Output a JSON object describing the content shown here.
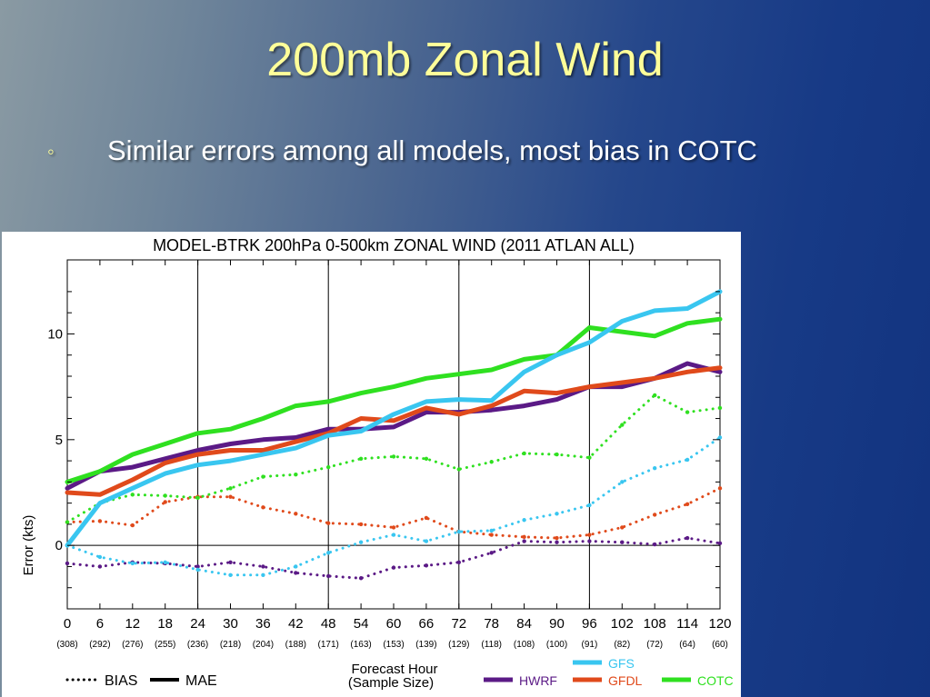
{
  "slide": {
    "title": "200mb Zonal Wind",
    "bullet_marker": "◦",
    "bullet": "Similar errors among all models, most bias in COTC"
  },
  "chart_data": {
    "type": "line",
    "title": "MODEL-BTRK 200hPa 0-500km ZONAL WIND (2011 ATLAN ALL)",
    "xlabel": "Forecast Hour",
    "xlabel2": "(Sample Size)",
    "ylabel": "Error (kts)",
    "x": [
      0,
      6,
      12,
      18,
      24,
      30,
      36,
      42,
      48,
      54,
      60,
      66,
      72,
      78,
      84,
      90,
      96,
      102,
      108,
      114,
      120
    ],
    "x_tick_labels": [
      "0",
      "6",
      "12",
      "18",
      "24",
      "30",
      "36",
      "42",
      "48",
      "54",
      "60",
      "66",
      "72",
      "78",
      "84",
      "90",
      "96",
      "102",
      "108",
      "114",
      "120"
    ],
    "sample_sizes": [
      "(308)",
      "(292)",
      "(276)",
      "(255)",
      "(236)",
      "(218)",
      "(204)",
      "(188)",
      "(171)",
      "(163)",
      "(153)",
      "(139)",
      "(129)",
      "(118)",
      "(108)",
      "(100)",
      "(91)",
      "(82)",
      "(72)",
      "(64)",
      "(60)"
    ],
    "xlim": [
      0,
      120
    ],
    "ylim": [
      -3,
      13.5
    ],
    "y_tick_labels": [
      "0",
      "5",
      "10"
    ],
    "y_ticks": [
      0,
      5,
      10
    ],
    "grid": "vertical lines every 24 h, horizontal line at 0",
    "series": [
      {
        "name": "HWRF",
        "color": "#5b1a86",
        "mae": [
          2.7,
          3.5,
          3.7,
          4.1,
          4.5,
          4.8,
          5.0,
          5.1,
          5.5,
          5.5,
          5.6,
          6.3,
          6.3,
          6.4,
          6.6,
          6.9,
          7.5,
          7.5,
          7.9,
          8.6,
          8.2
        ],
        "bias": [
          -0.85,
          -1.0,
          -0.8,
          -0.85,
          -1.0,
          -0.8,
          -1.0,
          -1.3,
          -1.45,
          -1.55,
          -1.05,
          -0.95,
          -0.8,
          -0.35,
          0.2,
          0.15,
          0.2,
          0.15,
          0.05,
          0.35,
          0.1
        ]
      },
      {
        "name": "GFDL",
        "color": "#e04a1b",
        "mae": [
          2.5,
          2.4,
          3.1,
          3.9,
          4.3,
          4.5,
          4.5,
          4.9,
          5.3,
          6.0,
          5.9,
          6.5,
          6.2,
          6.6,
          7.3,
          7.2,
          7.5,
          7.7,
          7.9,
          8.2,
          8.4
        ],
        "bias": [
          1.1,
          1.15,
          0.95,
          2.05,
          2.3,
          2.3,
          1.8,
          1.5,
          1.05,
          1.0,
          0.85,
          1.3,
          0.65,
          0.5,
          0.4,
          0.35,
          0.5,
          0.85,
          1.45,
          1.95,
          2.7
        ]
      },
      {
        "name": "COTC",
        "color": "#2fe020",
        "mae": [
          3.0,
          3.5,
          4.3,
          4.8,
          5.3,
          5.5,
          6.0,
          6.6,
          6.8,
          7.2,
          7.5,
          7.9,
          8.1,
          8.3,
          8.8,
          9.0,
          10.3,
          10.1,
          9.9,
          10.5,
          10.7
        ],
        "bias": [
          1.1,
          2.0,
          2.4,
          2.35,
          2.25,
          2.7,
          3.25,
          3.35,
          3.7,
          4.1,
          4.2,
          4.1,
          3.6,
          3.95,
          4.35,
          4.3,
          4.15,
          5.7,
          7.1,
          6.3,
          6.5
        ]
      },
      {
        "name": "GFS",
        "color": "#39c6f0",
        "mae": [
          0.0,
          2.0,
          2.7,
          3.4,
          3.8,
          4.0,
          4.3,
          4.6,
          5.2,
          5.4,
          6.2,
          6.8,
          6.9,
          6.85,
          8.2,
          9.0,
          9.6,
          10.6,
          11.1,
          11.2,
          12.0
        ],
        "bias": [
          0.0,
          -0.55,
          -0.85,
          -0.8,
          -1.15,
          -1.4,
          -1.4,
          -1.0,
          -0.35,
          0.15,
          0.5,
          0.2,
          0.65,
          0.7,
          1.2,
          1.5,
          1.9,
          3.0,
          3.65,
          4.05,
          5.1
        ]
      }
    ],
    "legend": {
      "style_entries": [
        {
          "label": "BIAS",
          "style": "dotted"
        },
        {
          "label": "MAE",
          "style": "solid"
        }
      ],
      "placement": "bottom"
    }
  }
}
